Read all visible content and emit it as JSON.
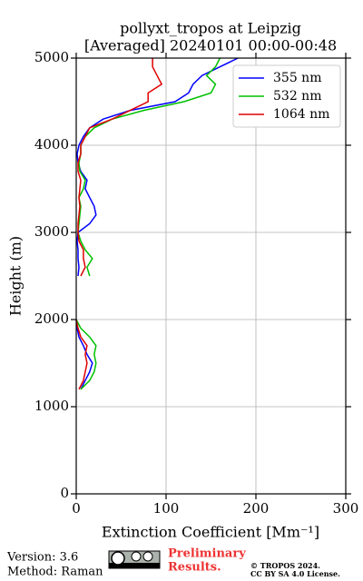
{
  "chart_data": {
    "type": "profile",
    "title": [
      "pollyxt_tropos at Leipzig",
      "[Averaged] 20240101 00:00-00:48"
    ],
    "xlabel": "Extinction Coefficient [Mm⁻¹]",
    "ylabel": "Height (m)",
    "y": [
      1200,
      1300,
      1400,
      1500,
      1600,
      1700,
      1800,
      1900,
      2000,
      2100,
      2200,
      2300,
      2400,
      2500,
      2600,
      2700,
      2800,
      2900,
      3000,
      3100,
      3200,
      3300,
      3400,
      3500,
      3600,
      3700,
      3800,
      3900,
      4000,
      4100,
      4200,
      4300,
      4400,
      4500,
      4600,
      4700,
      4800,
      4900,
      5000
    ],
    "series": [
      {
        "name": "355 nm",
        "color": "#0000ff",
        "values": [
          5,
          10,
          15,
          18,
          12,
          8,
          3,
          1,
          0,
          null,
          null,
          null,
          null,
          2,
          3,
          2,
          2,
          1,
          2,
          15,
          22,
          20,
          15,
          10,
          12,
          5,
          2,
          1,
          3,
          8,
          15,
          30,
          60,
          110,
          125,
          130,
          140,
          160,
          180
        ]
      },
      {
        "name": "532 nm",
        "color": "#00c000",
        "values": [
          5,
          15,
          20,
          22,
          20,
          22,
          15,
          5,
          0,
          null,
          null,
          null,
          null,
          15,
          12,
          18,
          10,
          5,
          2,
          3,
          4,
          5,
          3,
          8,
          10,
          4,
          3,
          5,
          5,
          10,
          20,
          40,
          75,
          120,
          150,
          155,
          145,
          155,
          160
        ]
      },
      {
        "name": "1064 nm",
        "color": "#e00000",
        "values": [
          3,
          8,
          10,
          12,
          10,
          12,
          5,
          2,
          0,
          null,
          null,
          null,
          null,
          5,
          10,
          8,
          8,
          3,
          2,
          2,
          3,
          4,
          3,
          4,
          5,
          2,
          2,
          5,
          5,
          10,
          15,
          40,
          60,
          80,
          80,
          95,
          90,
          85,
          85
        ]
      }
    ],
    "xlim": [
      0,
      300
    ],
    "xticks": [
      0,
      100,
      200,
      300
    ],
    "ylim": [
      0,
      5000
    ],
    "yticks": [
      0,
      1000,
      2000,
      3000,
      4000,
      5000
    ],
    "grid": true,
    "legend": "upper right"
  },
  "footer": {
    "version": "Version: 3.6",
    "method": "Method: Raman",
    "notice": [
      "Preliminary",
      "Results."
    ],
    "copyright": [
      "© TROPOS 2024.",
      "CC BY SA 4.0 License."
    ]
  }
}
